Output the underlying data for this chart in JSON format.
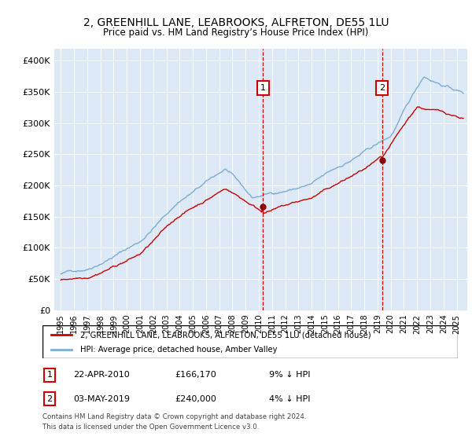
{
  "title_line1": "2, GREENHILL LANE, LEABROOKS, ALFRETON, DE55 1LU",
  "title_line2": "Price paid vs. HM Land Registry’s House Price Index (HPI)",
  "ylim": [
    0,
    420000
  ],
  "yticks": [
    0,
    50000,
    100000,
    150000,
    200000,
    250000,
    300000,
    350000,
    400000
  ],
  "ytick_labels": [
    "£0",
    "£50K",
    "£100K",
    "£150K",
    "£200K",
    "£250K",
    "£300K",
    "£350K",
    "£400K"
  ],
  "sale1_x": 2010.31,
  "sale1_y": 166170,
  "sale1_label": "1",
  "sale1_date": "22-APR-2010",
  "sale1_price": "£166,170",
  "sale1_note": "9% ↓ HPI",
  "sale2_x": 2019.34,
  "sale2_y": 240000,
  "sale2_label": "2",
  "sale2_date": "03-MAY-2019",
  "sale2_price": "£240,000",
  "sale2_note": "4% ↓ HPI",
  "legend_line1": "2, GREENHILL LANE, LEABROOKS, ALFRETON, DE55 1LU (detached house)",
  "legend_line2": "HPI: Average price, detached house, Amber Valley",
  "line_red": "#cc0000",
  "line_blue": "#7aadd4",
  "plot_bg": "#dce8f5",
  "footer_line1": "Contains HM Land Registry data © Crown copyright and database right 2024.",
  "footer_line2": "This data is licensed under the Open Government Licence v3.0.",
  "xmin": 1994.5,
  "xmax": 2025.8
}
